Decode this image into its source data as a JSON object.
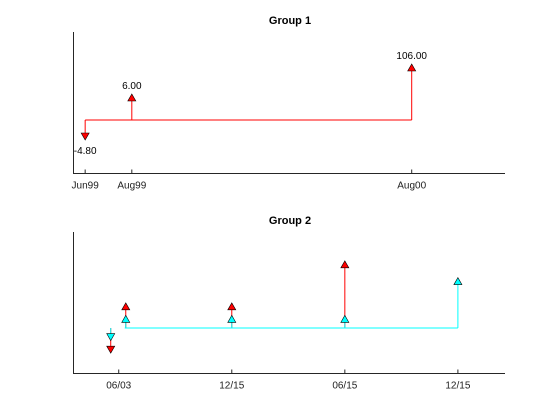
{
  "chart_data": [
    {
      "type": "line",
      "chart_kind": "cash-flow-diagram",
      "title": "Group 1",
      "xlabel": "",
      "ylabel": "",
      "x_ticks": [
        "Jun99",
        "Aug99",
        "Aug00"
      ],
      "x_tick_positions": [
        0,
        2,
        14
      ],
      "xlim": [
        -0.5,
        18
      ],
      "y_values_shown": false,
      "color": "#ff0000",
      "series": [
        {
          "color": "#ff0000",
          "flows": [
            {
              "x": 0,
              "value": -4.8,
              "label": "-4.80",
              "tip": "down"
            },
            {
              "x": 2,
              "value": 6.0,
              "label": "6.00",
              "tip": "up"
            },
            {
              "x": 14,
              "value": 106.0,
              "label": "106.00",
              "tip": "up"
            }
          ]
        }
      ]
    },
    {
      "type": "line",
      "chart_kind": "cash-flow-diagram",
      "title": "Group 2",
      "xlabel": "",
      "ylabel": "",
      "x_ticks": [
        "06/03",
        "12/15",
        "06/15",
        "12/15"
      ],
      "x_tick_positions": [
        0,
        6,
        12,
        18
      ],
      "xlim": [
        -2.4,
        20.5
      ],
      "y_values_shown": false,
      "series": [
        {
          "color": "#ff0000",
          "flows": [
            {
              "x": 0,
              "value": -0.6,
              "tip": "down"
            },
            {
              "x": 0.4,
              "value": 0.6,
              "tip": "up"
            },
            {
              "x": 6,
              "value": 0.6,
              "tip": "up"
            },
            {
              "x": 12,
              "value": 1.6,
              "tip": "up"
            }
          ]
        },
        {
          "color": "#00ffff",
          "flows": [
            {
              "x": 0,
              "value": -0.3,
              "tip": "down"
            },
            {
              "x": 0.4,
              "value": 0.3,
              "tip": "up"
            },
            {
              "x": 6,
              "value": 0.3,
              "tip": "up"
            },
            {
              "x": 12,
              "value": 0.3,
              "tip": "up"
            },
            {
              "x": 18,
              "value": 1.2,
              "tip": "up"
            }
          ]
        }
      ]
    }
  ]
}
